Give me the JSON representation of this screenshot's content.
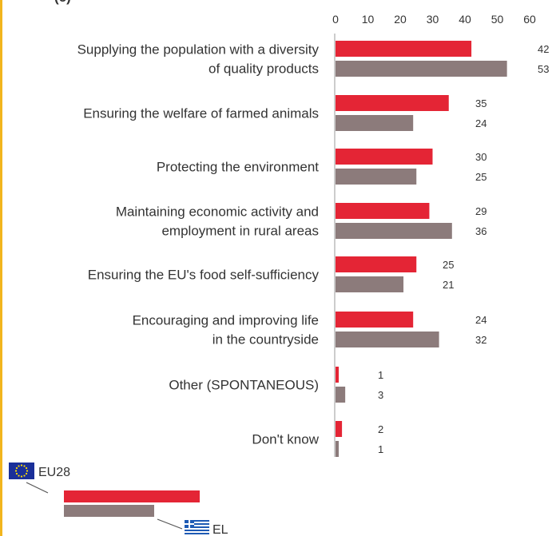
{
  "panel_label": "(c)",
  "chart_data": {
    "type": "bar",
    "orientation": "horizontal",
    "categories": [
      [
        "Supplying the population with a diversity",
        "of quality products"
      ],
      [
        "Ensuring the welfare of farmed animals"
      ],
      [
        "Protecting the environment"
      ],
      [
        "Maintaining economic activity and",
        "employment in rural areas"
      ],
      [
        "Ensuring the EU's food self-sufficiency"
      ],
      [
        "Encouraging and improving life",
        "in the countryside"
      ],
      [
        "Other (SPONTANEOUS)"
      ],
      [
        "Don't know"
      ]
    ],
    "series": [
      {
        "name": "EU28",
        "color": "#e42535",
        "values": [
          42,
          35,
          30,
          29,
          25,
          24,
          1,
          2
        ]
      },
      {
        "name": "EL",
        "color": "#8c7b7b",
        "values": [
          53,
          24,
          25,
          36,
          21,
          32,
          3,
          1
        ]
      }
    ],
    "xlim": [
      0,
      60
    ],
    "xticks": [
      "0",
      "10",
      "20",
      "30",
      "40",
      "50",
      "60"
    ],
    "axis_position": "top",
    "grid": false,
    "legend_position": "bottom-left"
  }
}
